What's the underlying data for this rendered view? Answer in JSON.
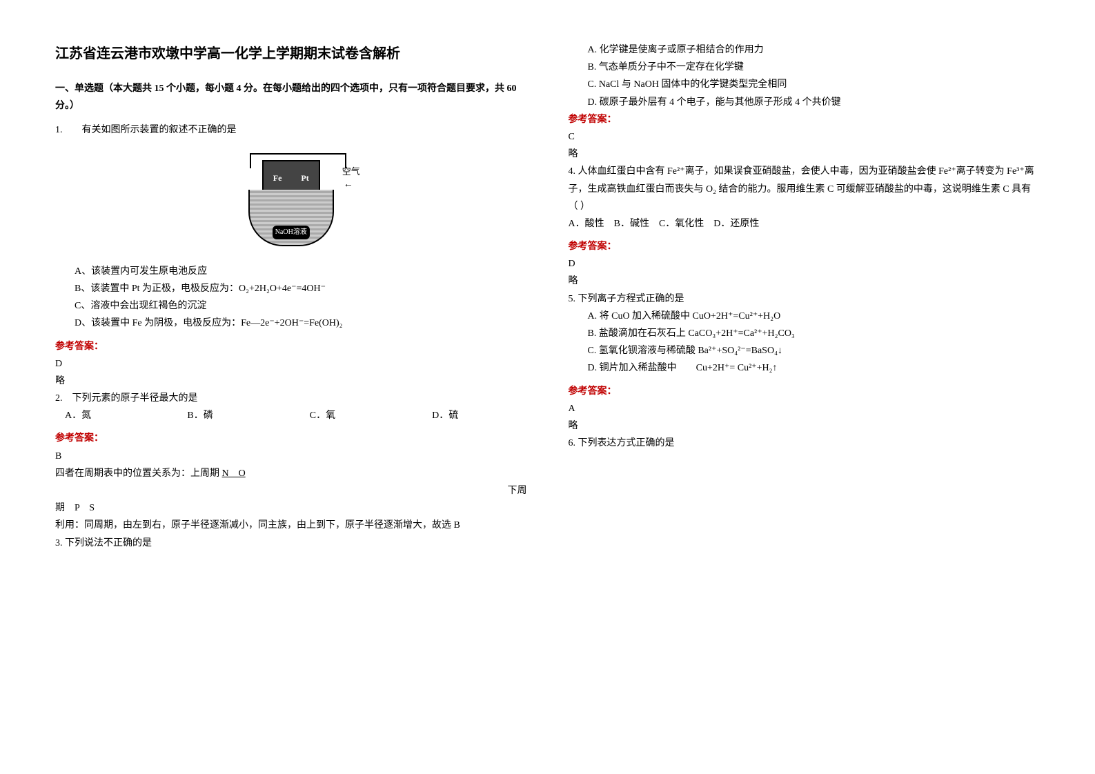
{
  "title": "江苏省连云港市欢墩中学高一化学上学期期末试卷含解析",
  "section_header": "一、单选题（本大题共 15 个小题，每小题 4 分。在每小题给出的四个选项中，只有一项符合题目要求，共 60 分。）",
  "q1": {
    "stem": "1.　　有关如图所示装置的叙述不正确的是",
    "electrode_left": "Fe",
    "electrode_right": "Pt",
    "air_label": "空气",
    "solution_label": "NaOH溶液",
    "opt_a": "A、该装置内可发生原电池反应",
    "opt_b": "B、该装置中 Pt 为正极，电极反应为：O₂+2H₂O+4e⁻=4OH⁻",
    "opt_c": "C、溶液中会出现红褐色的沉淀",
    "opt_d": "D、该装置中 Fe 为阴极，电极反应为：Fe—2e⁻+2OH⁻=Fe(OH)₂",
    "answer_label": "参考答案：",
    "answer": "D",
    "explanation": "略"
  },
  "q2": {
    "stem": "2.　下列元素的原子半径最大的是",
    "opt_a": "A．氮",
    "opt_b": "B．磷",
    "opt_c": "C．氧",
    "opt_d": "D．硫",
    "answer_label": "参考答案：",
    "answer": "B",
    "explanation_1": "四者在周期表中的位置关系为：上周期 ",
    "explanation_1_u": "N　O",
    "explanation_2_left": "期　P　S",
    "explanation_2_right": "下周",
    "explanation_3": "利用：同周期，由左到右，原子半径逐渐减小，同主族，由上到下，原子半径逐渐增大，故选 B"
  },
  "q3": {
    "stem": "3. 下列说法不正确的是",
    "opt_a": "A. 化学键是使离子或原子相结合的作用力",
    "opt_b": "B. 气态单质分子中不一定存在化学键",
    "opt_c": "C. NaCl 与 NaOH 固体中的化学键类型完全相同",
    "opt_d": "D. 碳原子最外层有 4 个电子，能与其他原子形成 4 个共价键",
    "answer_label": "参考答案：",
    "answer": "C",
    "explanation": "略"
  },
  "q4": {
    "stem": "4. 人体血红蛋白中含有 Fe²⁺离子，如果误食亚硝酸盐，会使人中毒，因为亚硝酸盐会使 Fe²⁺离子转变为 Fe³⁺离子，生成高铁血红蛋白而丧失与 O₂ 结合的能力。服用维生素 C 可缓解亚硝酸盐的中毒，这说明维生素 C 具有（  ）",
    "opts": "A．酸性　B．碱性　C．氧化性　D．还原性",
    "answer_label": "参考答案：",
    "answer": "D",
    "explanation": "略"
  },
  "q5": {
    "stem": "5. 下列离子方程式正确的是",
    "opt_a": "A. 将 CuO 加入稀硫酸中  CuO+2H⁺=Cu²⁺+H₂O",
    "opt_b": "B. 盐酸滴加在石灰石上  CaCO₃+2H⁺=Ca²⁺+H₂CO₃",
    "opt_c": "C. 氢氧化钡溶液与稀硫酸  Ba²⁺+SO₄²⁻=BaSO₄↓",
    "opt_d": "D. 铜片加入稀盐酸中　　Cu+2H⁺= Cu²⁺+H₂↑",
    "answer_label": "参考答案：",
    "answer": "A",
    "explanation": "略"
  },
  "q6": {
    "stem": "6. 下列表达方式正确的是"
  }
}
